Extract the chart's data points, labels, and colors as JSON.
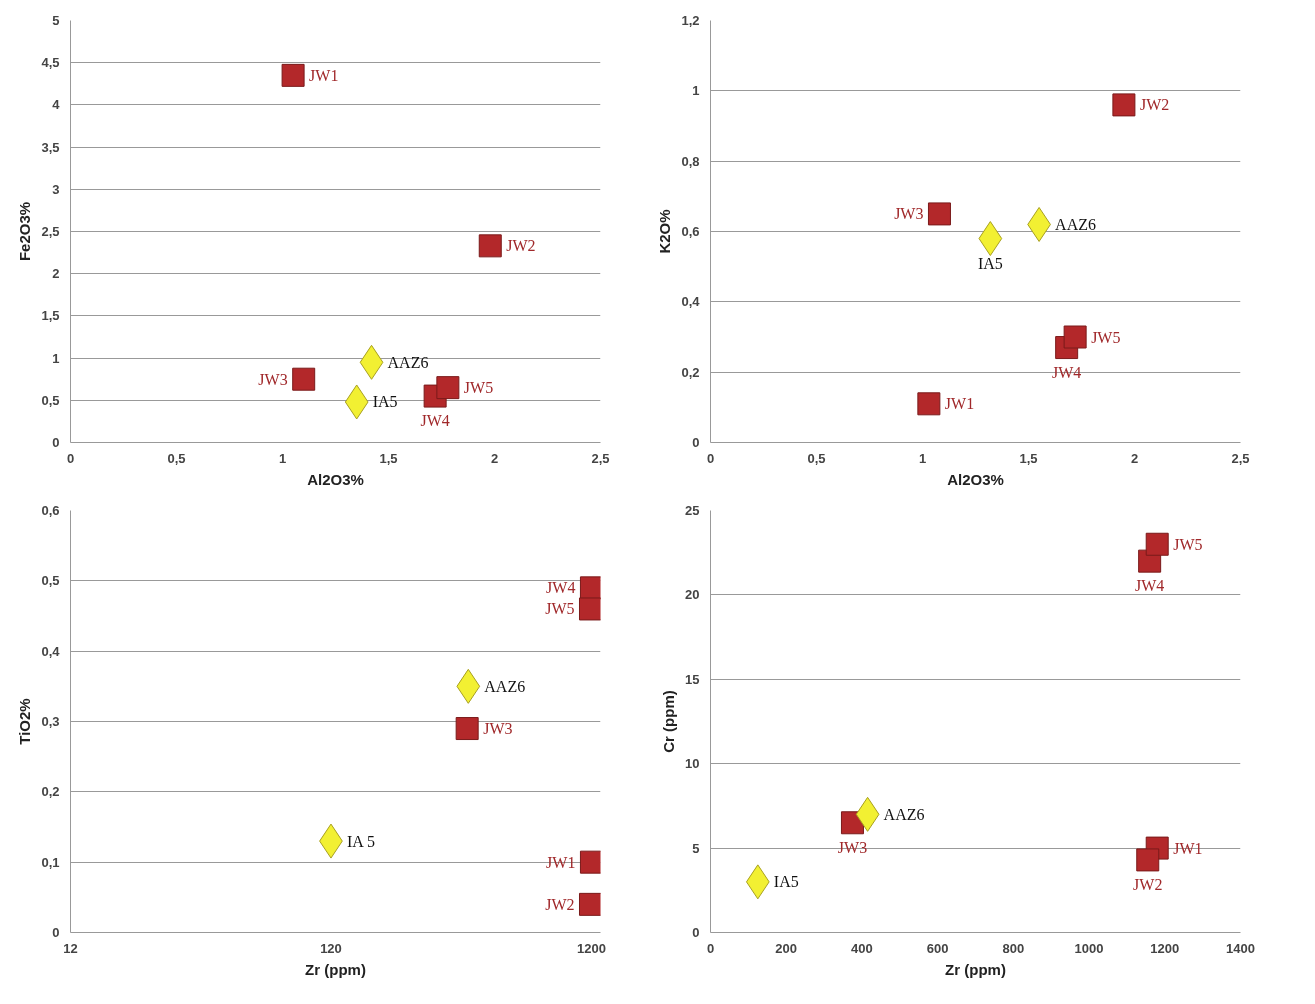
{
  "chart_data": [
    {
      "type": "scatter",
      "xlabel": "Al2O3%",
      "ylabel": "Fe2O3%",
      "xlim": [
        0,
        2.5
      ],
      "ylim": [
        0,
        5
      ],
      "xticks": [
        0,
        {
          "value": 0.5,
          "label": "0,5"
        },
        1,
        {
          "value": 1.5,
          "label": "1,5"
        },
        2,
        {
          "value": 2.5,
          "label": "2,5"
        }
      ],
      "yticks": [
        0,
        {
          "value": 0.5,
          "label": "0,5"
        },
        1,
        {
          "value": 1.5,
          "label": "1,5"
        },
        2,
        {
          "value": 2.5,
          "label": "2,5"
        },
        3,
        {
          "value": 3.5,
          "label": "3,5"
        },
        4,
        {
          "value": 4.5,
          "label": "4,5"
        },
        5
      ],
      "grid": "y",
      "series": [
        {
          "color": "#b3282a",
          "marker": "square",
          "x": [
            1.05,
            1.98,
            1.1,
            1.72,
            1.78
          ],
          "values": [
            4.35,
            2.33,
            0.75,
            0.55,
            0.65
          ]
        },
        {
          "color": "#f2f032",
          "marker": "diamond",
          "x": [
            1.35,
            1.42
          ],
          "values": [
            0.48,
            0.95
          ]
        }
      ],
      "annotations": [
        {
          "text": "JW1",
          "x": 1.05,
          "y": 4.35
        },
        {
          "text": "JW2",
          "x": 1.98,
          "y": 2.33
        },
        {
          "text": "JW3",
          "x": 1.1,
          "y": 0.75
        },
        {
          "text": "JW4",
          "x": 1.72,
          "y": 0.55
        },
        {
          "text": "JW5",
          "x": 1.78,
          "y": 0.65
        },
        {
          "text": "IA5",
          "x": 1.35,
          "y": 0.48
        },
        {
          "text": "AAZ6",
          "x": 1.42,
          "y": 0.95
        }
      ]
    },
    {
      "type": "scatter",
      "xlabel": "Al2O3%",
      "ylabel": "K2O%",
      "xlim": [
        0,
        2.5
      ],
      "ylim": [
        0,
        1.2
      ],
      "xticks": [
        0,
        {
          "value": 0.5,
          "label": "0,5"
        },
        1,
        {
          "value": 1.5,
          "label": "1,5"
        },
        2,
        {
          "value": 2.5,
          "label": "2,5"
        }
      ],
      "yticks": [
        0,
        {
          "value": 0.2,
          "label": "0,2"
        },
        {
          "value": 0.4,
          "label": "0,4"
        },
        {
          "value": 0.6,
          "label": "0,6"
        },
        {
          "value": 0.8,
          "label": "0,8"
        },
        1,
        {
          "value": 1.2,
          "label": "1,2"
        }
      ],
      "grid": "y",
      "series": [
        {
          "color": "#b3282a",
          "marker": "square",
          "x": [
            1.03,
            1.95,
            1.08,
            1.68,
            1.72
          ],
          "values": [
            0.11,
            0.96,
            0.65,
            0.27,
            0.3
          ]
        },
        {
          "color": "#f2f032",
          "marker": "diamond",
          "x": [
            1.32,
            1.55
          ],
          "values": [
            0.58,
            0.62
          ]
        }
      ],
      "annotations": [
        {
          "text": "JW1",
          "x": 1.03,
          "y": 0.11
        },
        {
          "text": "JW2",
          "x": 1.95,
          "y": 0.96
        },
        {
          "text": "JW3",
          "x": 1.08,
          "y": 0.65
        },
        {
          "text": "JW4",
          "x": 1.68,
          "y": 0.27
        },
        {
          "text": "JW5",
          "x": 1.72,
          "y": 0.3
        },
        {
          "text": "IA5",
          "x": 1.32,
          "y": 0.58
        },
        {
          "text": "AAZ6",
          "x": 1.55,
          "y": 0.62
        }
      ]
    },
    {
      "type": "scatter",
      "xlabel": "Zr (ppm)",
      "ylabel": "TiO2%",
      "log": "x",
      "xlim": [
        12,
        1300
      ],
      "ylim": [
        0,
        0.6
      ],
      "xticks": [
        12,
        120,
        1200
      ],
      "yticks": [
        0,
        {
          "value": 0.1,
          "label": "0,1"
        },
        {
          "value": 0.2,
          "label": "0,2"
        },
        {
          "value": 0.3,
          "label": "0,3"
        },
        {
          "value": 0.4,
          "label": "0,4"
        },
        {
          "value": 0.5,
          "label": "0,5"
        },
        {
          "value": 0.6,
          "label": "0,6"
        }
      ],
      "grid": "y",
      "series": [
        {
          "color": "#b3282a",
          "marker": "square",
          "x": [
            1200,
            1190,
            400,
            1200,
            1190
          ],
          "values": [
            0.1,
            0.04,
            0.29,
            0.49,
            0.46
          ]
        },
        {
          "color": "#f2f032",
          "marker": "diamond",
          "x": [
            120,
            404
          ],
          "values": [
            0.13,
            0.35
          ]
        }
      ],
      "annotations": [
        {
          "text": "JW1",
          "x": 1200,
          "y": 0.1
        },
        {
          "text": "JW2",
          "x": 1190,
          "y": 0.04
        },
        {
          "text": "JW3",
          "x": 400,
          "y": 0.29
        },
        {
          "text": "JW4",
          "x": 1200,
          "y": 0.49
        },
        {
          "text": "JW5",
          "x": 1190,
          "y": 0.46
        },
        {
          "text": "IA 5",
          "x": 120,
          "y": 0.13
        },
        {
          "text": "AAZ6",
          "x": 404,
          "y": 0.35
        }
      ]
    },
    {
      "type": "scatter",
      "xlabel": "Zr (ppm)",
      "ylabel": "Cr (ppm)",
      "xlim": [
        0,
        1400
      ],
      "ylim": [
        0,
        25
      ],
      "xticks": [
        0,
        200,
        400,
        600,
        800,
        1000,
        1200,
        1400
      ],
      "yticks": [
        0,
        5,
        10,
        15,
        20,
        25
      ],
      "grid": "y",
      "series": [
        {
          "color": "#b3282a",
          "marker": "square",
          "x": [
            1180,
            1155,
            375,
            1160,
            1180
          ],
          "values": [
            5,
            4.3,
            6.5,
            22,
            23
          ]
        },
        {
          "color": "#f2f032",
          "marker": "diamond",
          "x": [
            125,
            415
          ],
          "values": [
            3,
            7
          ]
        }
      ],
      "annotations": [
        {
          "text": "JW1",
          "x": 1180,
          "y": 5
        },
        {
          "text": "JW2",
          "x": 1155,
          "y": 4.3
        },
        {
          "text": "JW3",
          "x": 375,
          "y": 6.5
        },
        {
          "text": "JW4",
          "x": 1160,
          "y": 22
        },
        {
          "text": "JW5",
          "x": 1180,
          "y": 23
        },
        {
          "text": "IA5",
          "x": 125,
          "y": 3
        },
        {
          "text": "AAZ6",
          "x": 415,
          "y": 7
        }
      ]
    }
  ]
}
